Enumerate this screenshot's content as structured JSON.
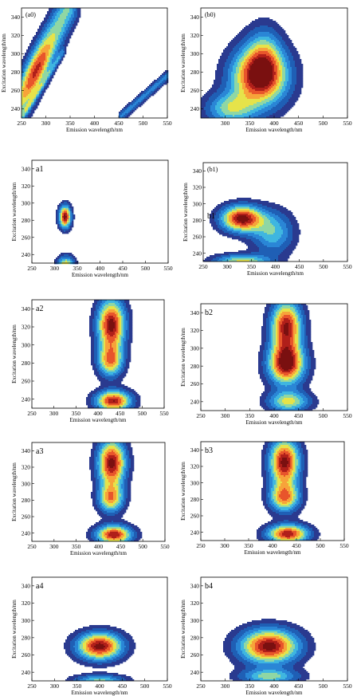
{
  "chart_data": [
    {
      "id": "a0",
      "type": "heatmap",
      "panel_label": "(a0)",
      "xlabel": "Emission wavelength/nm",
      "ylabel": "Excitation wavelength/nm",
      "xticks": [
        250,
        300,
        350,
        400,
        450,
        500,
        550
      ],
      "yticks": [
        240,
        260,
        280,
        300,
        320,
        340
      ],
      "xlim": [
        250,
        550
      ],
      "ylim": [
        230,
        350
      ],
      "features": [
        {
          "kind": "band",
          "from": [
            250,
            250
          ],
          "to": [
            345,
            350
          ],
          "width": 14,
          "peak": [
            280,
            282
          ],
          "level": 0.9
        },
        {
          "kind": "band",
          "from": [
            252,
            232
          ],
          "to": [
            335,
            302
          ],
          "width": 3,
          "level": 0.25
        },
        {
          "kind": "band",
          "from": [
            455,
            232
          ],
          "to": [
            550,
            276
          ],
          "width": 4,
          "level": 0.3
        }
      ]
    },
    {
      "id": "b0",
      "type": "heatmap",
      "panel_label": "(b0)",
      "xlabel": "Emission wavelength/nm",
      "ylabel": "Excitation wavelength/nm",
      "xticks": [
        300,
        350,
        400,
        450,
        500,
        550
      ],
      "yticks": [
        240,
        260,
        280,
        300,
        320,
        340
      ],
      "xlim": [
        250,
        550
      ],
      "ylim": [
        230,
        350
      ],
      "features": [
        {
          "kind": "peak",
          "center": [
            370,
            275
          ],
          "sx": 40,
          "sy": 22,
          "amp": 1.0
        },
        {
          "kind": "peak",
          "center": [
            380,
            300
          ],
          "sx": 25,
          "sy": 22,
          "amp": 0.35
        },
        {
          "kind": "peak",
          "center": [
            310,
            240
          ],
          "sx": 35,
          "sy": 12,
          "amp": 0.5
        }
      ]
    },
    {
      "id": "a1",
      "type": "heatmap",
      "panel_label": "a1",
      "xlabel": "Emission wavelength/nm",
      "ylabel": "Excitation wavelength/nm",
      "xticks": [
        250,
        300,
        350,
        400,
        450,
        500,
        550
      ],
      "yticks": [
        240,
        260,
        280,
        300,
        320,
        340
      ],
      "xlim": [
        250,
        550
      ],
      "ylim": [
        230,
        350
      ],
      "features": [
        {
          "kind": "peak",
          "center": [
            323,
            284
          ],
          "sx": 9,
          "sy": 9,
          "amp": 1.0
        },
        {
          "kind": "peak",
          "center": [
            325,
            226
          ],
          "sx": 13,
          "sy": 8,
          "amp": 0.75
        }
      ]
    },
    {
      "id": "b1",
      "type": "heatmap",
      "panel_label": "(b1)",
      "inner_label": "b1",
      "xlabel": "Emission wavelength/nm",
      "ylabel": "Excitation wavelength/nm",
      "xticks": [
        250,
        300,
        350,
        400,
        450,
        500,
        550
      ],
      "yticks": [
        240,
        260,
        280,
        300,
        320,
        340
      ],
      "xlim": [
        250,
        550
      ],
      "ylim": [
        230,
        350
      ],
      "features": [
        {
          "kind": "peak",
          "center": [
            330,
            282
          ],
          "sx": 30,
          "sy": 11,
          "amp": 1.0
        },
        {
          "kind": "peak",
          "center": [
            395,
            265
          ],
          "sx": 30,
          "sy": 18,
          "amp": 0.45
        },
        {
          "kind": "peak",
          "center": [
            330,
            230
          ],
          "sx": 40,
          "sy": 6,
          "amp": 0.6
        }
      ]
    },
    {
      "id": "a2",
      "type": "heatmap",
      "panel_label": "a2",
      "xlabel": "Emission wavelength/nm",
      "ylabel": "Excitation wavelength/nm",
      "xticks": [
        250,
        300,
        350,
        400,
        450,
        500,
        550
      ],
      "yticks": [
        240,
        260,
        280,
        300,
        320,
        340
      ],
      "xlim": [
        250,
        550
      ],
      "ylim": [
        230,
        350
      ],
      "features": [
        {
          "kind": "peak",
          "center": [
            430,
            322
          ],
          "sx": 22,
          "sy": 20,
          "amp": 1.0
        },
        {
          "kind": "peak",
          "center": [
            428,
            282
          ],
          "sx": 20,
          "sy": 12,
          "amp": 0.7
        },
        {
          "kind": "peak",
          "center": [
            435,
            238
          ],
          "sx": 28,
          "sy": 8,
          "amp": 0.95
        }
      ]
    },
    {
      "id": "b2",
      "type": "heatmap",
      "panel_label": "b2",
      "xlabel": "Emission wavelength/nm",
      "ylabel": "Excitation wavelength/nm",
      "xticks": [
        250,
        300,
        350,
        400,
        450,
        500,
        550
      ],
      "yticks": [
        240,
        260,
        280,
        300,
        320,
        340
      ],
      "xlim": [
        250,
        550
      ],
      "ylim": [
        230,
        350
      ],
      "features": [
        {
          "kind": "peak",
          "center": [
            425,
            325
          ],
          "sx": 22,
          "sy": 20,
          "amp": 0.95
        },
        {
          "kind": "peak",
          "center": [
            425,
            282
          ],
          "sx": 26,
          "sy": 16,
          "amp": 1.0
        },
        {
          "kind": "peak",
          "center": [
            430,
            240
          ],
          "sx": 30,
          "sy": 8,
          "amp": 0.6
        }
      ]
    },
    {
      "id": "a3",
      "type": "heatmap",
      "panel_label": "a3",
      "xlabel": "Emission wavelength/nm",
      "ylabel": "Excitation wavelength/nm",
      "xticks": [
        250,
        300,
        350,
        400,
        450,
        500,
        550
      ],
      "yticks": [
        240,
        260,
        280,
        300,
        320,
        340
      ],
      "xlim": [
        250,
        550
      ],
      "ylim": [
        230,
        350
      ],
      "features": [
        {
          "kind": "peak",
          "center": [
            430,
            325
          ],
          "sx": 22,
          "sy": 20,
          "amp": 1.0
        },
        {
          "kind": "peak",
          "center": [
            428,
            282
          ],
          "sx": 20,
          "sy": 12,
          "amp": 0.7
        },
        {
          "kind": "peak",
          "center": [
            435,
            238
          ],
          "sx": 28,
          "sy": 8,
          "amp": 0.95
        }
      ]
    },
    {
      "id": "b3",
      "type": "heatmap",
      "panel_label": "b3",
      "xlabel": "Emission wavelength/nm",
      "ylabel": "Excitation wavelength/nm",
      "xticks": [
        250,
        300,
        350,
        400,
        450,
        500,
        550
      ],
      "yticks": [
        240,
        260,
        280,
        300,
        320,
        340
      ],
      "xlim": [
        250,
        550
      ],
      "ylim": [
        230,
        350
      ],
      "features": [
        {
          "kind": "peak",
          "center": [
            425,
            325
          ],
          "sx": 22,
          "sy": 20,
          "amp": 1.0
        },
        {
          "kind": "peak",
          "center": [
            425,
            282
          ],
          "sx": 22,
          "sy": 12,
          "amp": 0.75
        },
        {
          "kind": "peak",
          "center": [
            432,
            238
          ],
          "sx": 30,
          "sy": 8,
          "amp": 0.95
        }
      ]
    },
    {
      "id": "a4",
      "type": "heatmap",
      "panel_label": "a4",
      "xlabel": "Emission wavelength/nm",
      "ylabel": "Excitation wavelength/nm",
      "xticks": [
        250,
        300,
        350,
        400,
        450,
        500,
        550
      ],
      "yticks": [
        240,
        260,
        280,
        300,
        320,
        340
      ],
      "xlim": [
        250,
        550
      ],
      "ylim": [
        230,
        350
      ],
      "features": [
        {
          "kind": "peak",
          "center": [
            400,
            270
          ],
          "sx": 35,
          "sy": 11,
          "amp": 1.0
        },
        {
          "kind": "peak",
          "center": [
            400,
            230
          ],
          "sx": 40,
          "sy": 5,
          "amp": 0.5
        }
      ]
    },
    {
      "id": "b4",
      "type": "heatmap",
      "panel_label": "b4",
      "xlabel": "Emission wavelength/nm",
      "ylabel": "Excitation wavelength/nm",
      "xticks": [
        250,
        300,
        350,
        400,
        450,
        500,
        550
      ],
      "yticks": [
        240,
        260,
        280,
        300,
        320,
        340
      ],
      "xlim": [
        250,
        550
      ],
      "ylim": [
        230,
        350
      ],
      "features": [
        {
          "kind": "peak",
          "center": [
            390,
            270
          ],
          "sx": 42,
          "sy": 14,
          "amp": 1.0
        },
        {
          "kind": "peak",
          "center": [
            390,
            235
          ],
          "sx": 42,
          "sy": 6,
          "amp": 0.5
        }
      ]
    }
  ],
  "colormap": [
    "#2a3a8f",
    "#1f5fb5",
    "#2a86d6",
    "#3fb6e0",
    "#8fd7a4",
    "#e6e34a",
    "#f7a33a",
    "#e8552b",
    "#b01f1a",
    "#7a1010"
  ],
  "contour_levels": [
    0.08,
    0.17,
    0.27,
    0.37,
    0.47,
    0.57,
    0.67,
    0.77,
    0.87,
    0.95
  ]
}
